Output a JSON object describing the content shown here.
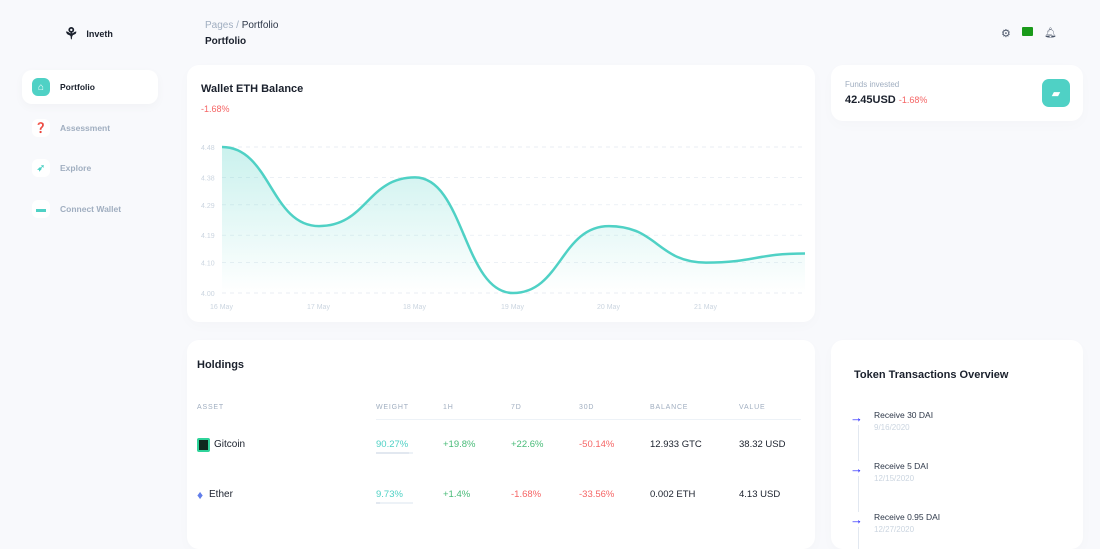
{
  "brand": {
    "name": "Inveth"
  },
  "breadcrumb": {
    "root": "Pages",
    "current": "Portfolio"
  },
  "page_title": "Portfolio",
  "sidebar": {
    "items": [
      {
        "label": "Portfolio",
        "icon": "home-icon",
        "active": true
      },
      {
        "label": "Assessment",
        "icon": "question-icon"
      },
      {
        "label": "Explore",
        "icon": "rocket-icon"
      },
      {
        "label": "Connect Wallet",
        "icon": "credit-card-icon"
      }
    ]
  },
  "header_icons": [
    "gear-icon",
    "wallet-icon",
    "bell-icon"
  ],
  "balance_card": {
    "title": "Wallet ETH Balance",
    "change": "-1.68%"
  },
  "funds": {
    "label": "Funds invested",
    "value": "42.45USD",
    "change": "-1.68%"
  },
  "chart_data": {
    "type": "area",
    "x": [
      "16 May",
      "17 May",
      "18 May",
      "19 May",
      "20 May",
      "21 May",
      ""
    ],
    "values": [
      4.48,
      4.22,
      4.38,
      4.0,
      4.22,
      4.1,
      4.13
    ],
    "yticks": [
      "4.00",
      "4.10",
      "4.19",
      "4.29",
      "4.38",
      "4.48"
    ],
    "ylim": [
      4.0,
      4.48
    ],
    "grid": true,
    "color": "#4fd1c5"
  },
  "holdings": {
    "title": "Holdings",
    "columns": [
      "ASSET",
      "WEIGHT",
      "1H",
      "7D",
      "30D",
      "BALANCE",
      "VALUE"
    ],
    "rows": [
      {
        "asset": "Gitcoin",
        "weight": "90.27%",
        "weight_pct": 90.27,
        "h1": "+19.8%",
        "d7": "+22.6%",
        "d30": "-50.14%",
        "balance": "12.933 GTC",
        "value": "38.32 USD"
      },
      {
        "asset": "Ether",
        "weight": "9.73%",
        "weight_pct": 9.73,
        "h1": "+1.4%",
        "d7": "-1.68%",
        "d30": "-33.56%",
        "balance": "0.002 ETH",
        "value": "4.13 USD"
      }
    ]
  },
  "transactions": {
    "title": "Token Transactions Overview",
    "items": [
      {
        "label": "Receive 30 DAI",
        "date": "9/16/2020"
      },
      {
        "label": "Receive 5 DAI",
        "date": "12/15/2020"
      },
      {
        "label": "Receive 0.95 DAI",
        "date": "12/27/2020"
      }
    ]
  }
}
